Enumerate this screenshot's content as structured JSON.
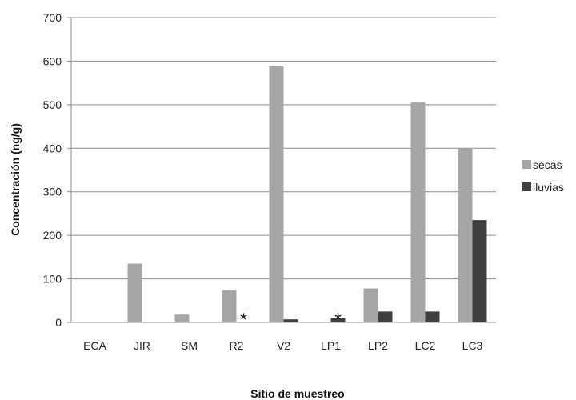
{
  "chart_data": {
    "type": "bar",
    "title": "",
    "xlabel": "Sitio de muestreo",
    "ylabel": "Concentración (ng/g)",
    "ylim": [
      0,
      700
    ],
    "yticks": [
      0,
      100,
      200,
      300,
      400,
      500,
      600,
      700
    ],
    "grid": true,
    "legend_position": "right",
    "categories": [
      "ECA",
      "JIR",
      "SM",
      "R2",
      "V2",
      "LP1",
      "LP2",
      "LC2",
      "LC3"
    ],
    "series": [
      {
        "name": "secas",
        "color": "#a6a6a6",
        "values": [
          0,
          135,
          18,
          74,
          588,
          0,
          78,
          505,
          400
        ]
      },
      {
        "name": "lluvias",
        "color": "#404040",
        "values": [
          0,
          0,
          0,
          0,
          7,
          10,
          25,
          25,
          235
        ]
      }
    ],
    "annotations": [
      {
        "category": "R2",
        "text": "*"
      },
      {
        "category": "LP1",
        "text": "*"
      }
    ]
  }
}
